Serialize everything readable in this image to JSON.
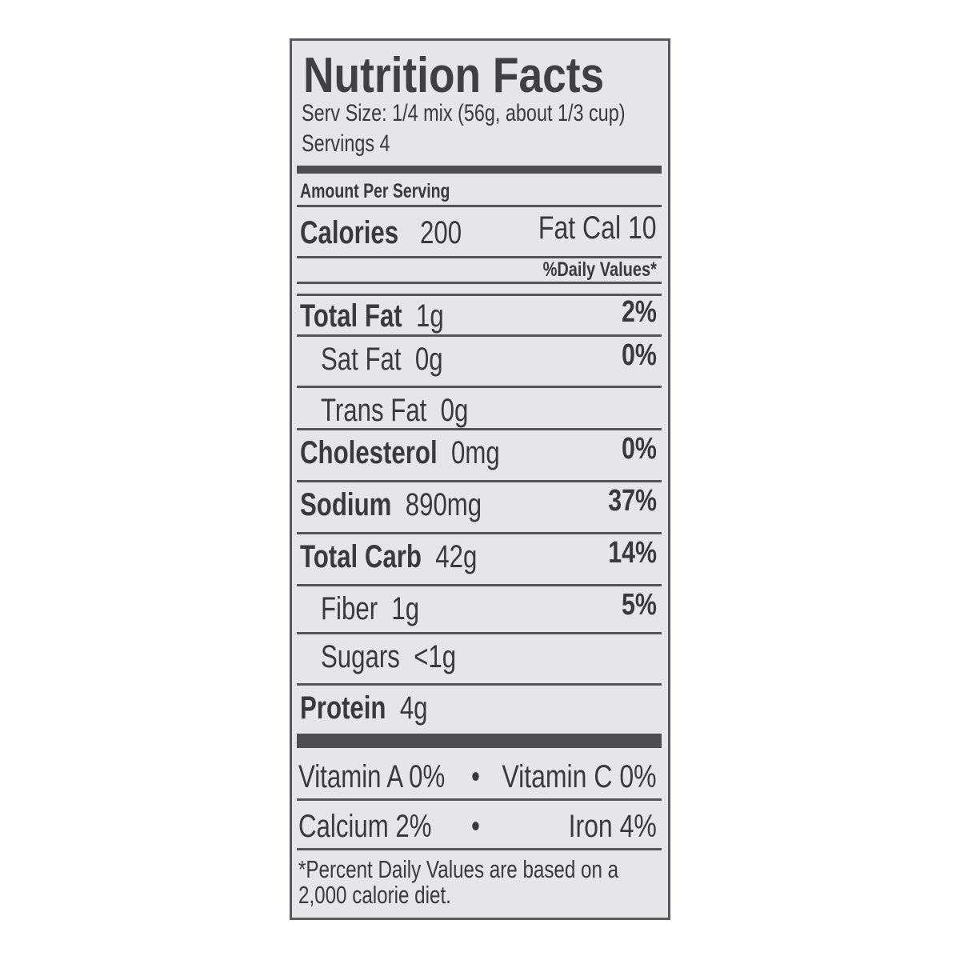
{
  "label": {
    "title": "Nutrition Facts",
    "serving_size": "Serv Size: 1/4 mix (56g, about 1/3 cup)",
    "servings": "Servings 4",
    "amount_per_serving": "Amount Per Serving",
    "calories_label": "Calories",
    "calories_value": "200",
    "fat_cal": "Fat Cal  10",
    "daily_values_header": "%Daily Values*",
    "nutrients": [
      {
        "name": "Total Fat",
        "amount": "1g",
        "dv": "2%",
        "bold": true,
        "indent": false
      },
      {
        "name": "Sat Fat",
        "amount": "0g",
        "dv": "0%",
        "bold": false,
        "indent": true
      },
      {
        "name": "Trans Fat",
        "amount": "0g",
        "dv": "",
        "bold": false,
        "indent": true
      },
      {
        "name": "Cholesterol",
        "amount": "0mg",
        "dv": "0%",
        "bold": true,
        "indent": false
      },
      {
        "name": "Sodium",
        "amount": "890mg",
        "dv": "37%",
        "bold": true,
        "indent": false
      },
      {
        "name": "Total Carb",
        "amount": "42g",
        "dv": "14%",
        "bold": true,
        "indent": false
      },
      {
        "name": "Fiber",
        "amount": "1g",
        "dv": "5%",
        "bold": false,
        "indent": true
      },
      {
        "name": "Sugars",
        "amount": "<1g",
        "dv": "",
        "bold": false,
        "indent": true
      },
      {
        "name": "Protein",
        "amount": "4g",
        "dv": "",
        "bold": true,
        "indent": false
      }
    ],
    "vitamins": [
      {
        "left": "Vitamin A  0%",
        "bullet": "•",
        "right": "Vitamin C  0%"
      },
      {
        "left": "Calcium  2%",
        "bullet": "•",
        "right": "Iron  4%"
      }
    ],
    "footnote_line1": "*Percent Daily Values are based on a",
    "footnote_line2": "2,000 calorie diet."
  }
}
